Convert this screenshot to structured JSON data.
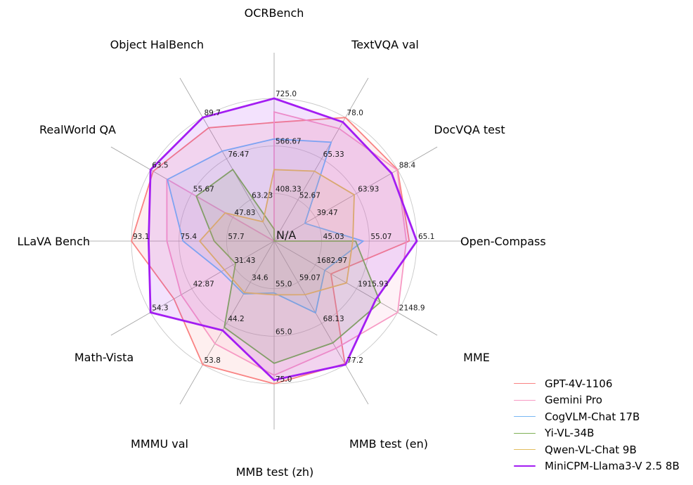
{
  "figure": {
    "background": "#ffffff",
    "center_label": "N/A"
  },
  "chart_data": {
    "type": "radar",
    "title": "",
    "grid": {
      "rings": 3,
      "ring_color": "#c9c9c9",
      "spoke_color": "#9e9e9e",
      "fill_opacity": 0.13
    },
    "legend_position": "bottom-right",
    "axes": [
      {
        "label": "OCRBench",
        "min": 250,
        "max": 725,
        "ticks": [
          "408.33",
          "566.67",
          "725.0"
        ]
      },
      {
        "label": "TextVQA val",
        "min": 40,
        "max": 78.0,
        "ticks": [
          "52.67",
          "65.33",
          "78.0"
        ]
      },
      {
        "label": "DocVQA test",
        "min": 15,
        "max": 88.4,
        "ticks": [
          "39.47",
          "63.93",
          "88.4"
        ]
      },
      {
        "label": "Open-Compass",
        "min": 35,
        "max": 65.1,
        "ticks": [
          "45.03",
          "55.07",
          "65.1"
        ]
      },
      {
        "label": "MME",
        "min": 1450,
        "max": 2148.9,
        "ticks": [
          "1682.97",
          "1915.93",
          "2148.9"
        ]
      },
      {
        "label": "MMB test (en)",
        "min": 50,
        "max": 77.2,
        "ticks": [
          "59.07",
          "68.13",
          "77.2"
        ]
      },
      {
        "label": "MMB test (zh)",
        "min": 45,
        "max": 75.0,
        "ticks": [
          "55.0",
          "65.0",
          "75.0"
        ]
      },
      {
        "label": "MMMU val",
        "min": 25,
        "max": 53.8,
        "ticks": [
          "34.6",
          "44.2",
          "53.8"
        ]
      },
      {
        "label": "Math-Vista",
        "min": 20,
        "max": 54.3,
        "ticks": [
          "31.43",
          "42.87",
          "54.3"
        ]
      },
      {
        "label": "LLaVA Bench",
        "min": 40,
        "max": 93.1,
        "ticks": [
          "57.7",
          "75.4",
          "93.1"
        ]
      },
      {
        "label": "RealWorld QA",
        "min": 40,
        "max": 63.5,
        "ticks": [
          "47.83",
          "55.67",
          "63.5"
        ]
      },
      {
        "label": "Object HalBench",
        "min": 50,
        "max": 89.7,
        "ticks": [
          "63.23",
          "76.47",
          "89.7"
        ]
      }
    ],
    "series": [
      {
        "name": "GPT-4V-1106",
        "color": "#f98383",
        "line_width": 1.8,
        "values": [
          645,
          78.0,
          88.4,
          63.5,
          1771.5,
          77.0,
          75.0,
          53.8,
          47.8,
          93.1,
          63.0,
          86.4
        ]
      },
      {
        "name": "Gemini Pro",
        "color": "#f79ac4",
        "line_width": 1.8,
        "values": [
          680,
          74.6,
          88.1,
          62.9,
          2148.9,
          73.6,
          73.2,
          48.9,
          45.8,
          79.9,
          60.4,
          null
        ]
      },
      {
        "name": "CogVLM-Chat 17B",
        "color": "#79b7f3",
        "line_width": 1.8,
        "values": [
          590,
          70.4,
          33.3,
          53.8,
          1736.6,
          65.8,
          55.9,
          37.3,
          34.7,
          73.9,
          60.3,
          78.9
        ]
      },
      {
        "name": "Yi-VL-34B",
        "color": "#7fb155",
        "line_width": 1.8,
        "values": [
          290,
          null,
          null,
          52.2,
          2050.2,
          72.4,
          70.7,
          45.1,
          30.7,
          62.3,
          54.8,
          73.0
        ]
      },
      {
        "name": "Qwen-VL-Chat 9B",
        "color": "#e2bd5e",
        "line_width": 1.8,
        "values": [
          488,
          61.5,
          62.6,
          51.6,
          1860.0,
          61.8,
          56.3,
          37.0,
          33.8,
          67.7,
          49.3,
          56.2
        ]
      },
      {
        "name": "MiniCPM-Llama3-V 2.5 8B",
        "color": "#a31df2",
        "line_width": 2.8,
        "values": [
          725,
          76.6,
          84.8,
          65.1,
          2024.6,
          77.2,
          74.2,
          45.8,
          54.3,
          86.7,
          63.5,
          89.7
        ]
      }
    ],
    "na_note": "N/A values are plotted at the chart center"
  }
}
